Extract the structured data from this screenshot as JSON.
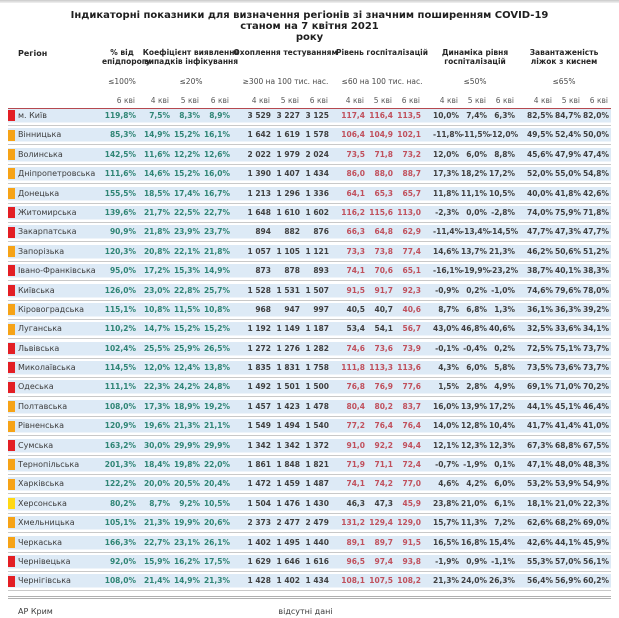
{
  "title": {
    "line1": "Індикаторні показники для визначення регіонів зі значним поширенням COVID-19",
    "line2": "станом на 7 квітня 2021",
    "line3": "року"
  },
  "columns": {
    "region_label": "Регіон",
    "groups": [
      {
        "name": "% від епідпорогу",
        "threshold": "≤100%",
        "subs": [
          "6 кві"
        ]
      },
      {
        "name": "Коефіцієнт виявлення випадків інфікування",
        "threshold": "≤20%",
        "subs": [
          "4 кві",
          "5 кві",
          "6 кві"
        ]
      },
      {
        "name": "Охоплення тестуванням",
        "threshold": "≥300 на 100 тис. нас.",
        "subs": [
          "4 кві",
          "5 кві",
          "6 кві"
        ]
      },
      {
        "name": "Рівень госпіталізацій",
        "threshold": "≤60 на 100 тис. нас.",
        "subs": [
          "4 кві",
          "5 кві",
          "6 кві"
        ]
      },
      {
        "name": "Динаміка рівня госпіталізацій",
        "threshold": "≤50%",
        "subs": [
          "4 кві",
          "5 кві",
          "6 кві"
        ]
      },
      {
        "name": "Завантаженість ліжок з киснем",
        "threshold": "≤65%",
        "subs": [
          "4 кві",
          "5 кві",
          "6 кві"
        ]
      }
    ]
  },
  "status_colors": {
    "red": "#e31e24",
    "orange": "#f6a317",
    "yellow": "#ffd814"
  },
  "value_colors": {
    "green": "#2f8575",
    "red": "#c0505c",
    "dark": "#3f3f3f"
  },
  "rows": [
    {
      "region": "м. Київ",
      "status": "red",
      "epid": "119,8%",
      "coef": [
        "7,5%",
        "8,3%",
        "8,9%"
      ],
      "test": [
        "3 529",
        "3 227",
        "3 125"
      ],
      "hosp": [
        "117,4",
        "116,4",
        "113,5"
      ],
      "dyn": [
        "10,0%",
        "7,4%",
        "6,3%"
      ],
      "load": [
        "82,5%",
        "84,7%",
        "82,0%"
      ]
    },
    {
      "region": "Вінницька",
      "status": "orange",
      "epid": "85,3%",
      "coef": [
        "14,9%",
        "15,2%",
        "16,1%"
      ],
      "test": [
        "1 642",
        "1 619",
        "1 578"
      ],
      "hosp": [
        "106,4",
        "104,9",
        "102,1"
      ],
      "dyn": [
        "-11,8%",
        "-11,5%",
        "-12,0%"
      ],
      "load": [
        "49,5%",
        "52,4%",
        "50,0%"
      ]
    },
    {
      "region": "Волинська",
      "status": "orange",
      "epid": "142,5%",
      "coef": [
        "11,6%",
        "12,2%",
        "12,6%"
      ],
      "test": [
        "2 022",
        "1 979",
        "2 024"
      ],
      "hosp": [
        "73,5",
        "71,8",
        "73,2"
      ],
      "dyn": [
        "12,0%",
        "6,0%",
        "8,8%"
      ],
      "load": [
        "45,6%",
        "47,9%",
        "47,4%"
      ]
    },
    {
      "region": "Дніпропетровська",
      "status": "orange",
      "epid": "111,6%",
      "coef": [
        "14,6%",
        "15,2%",
        "16,0%"
      ],
      "test": [
        "1 390",
        "1 407",
        "1 434"
      ],
      "hosp": [
        "86,0",
        "88,0",
        "88,7"
      ],
      "dyn": [
        "17,3%",
        "18,2%",
        "17,2%"
      ],
      "load": [
        "52,0%",
        "55,0%",
        "54,8%"
      ]
    },
    {
      "region": "Донецька",
      "status": "orange",
      "epid": "155,5%",
      "coef": [
        "18,5%",
        "17,4%",
        "16,7%"
      ],
      "test": [
        "1 213",
        "1 296",
        "1 336"
      ],
      "hosp": [
        "64,1",
        "65,3",
        "65,7"
      ],
      "dyn": [
        "11,8%",
        "11,1%",
        "10,5%"
      ],
      "load": [
        "40,0%",
        "41,8%",
        "42,6%"
      ]
    },
    {
      "region": "Житомирська",
      "status": "red",
      "epid": "139,6%",
      "coef": [
        "21,7%",
        "22,5%",
        "22,7%"
      ],
      "test": [
        "1 648",
        "1 610",
        "1 602"
      ],
      "hosp": [
        "116,2",
        "115,6",
        "113,0"
      ],
      "dyn": [
        "-2,3%",
        "0,0%",
        "-2,8%"
      ],
      "load": [
        "74,0%",
        "75,9%",
        "71,8%"
      ]
    },
    {
      "region": "Закарпатська",
      "status": "red",
      "epid": "90,9%",
      "coef": [
        "21,8%",
        "23,9%",
        "23,7%"
      ],
      "test": [
        "894",
        "882",
        "876"
      ],
      "hosp": [
        "66,3",
        "64,8",
        "62,9"
      ],
      "dyn": [
        "-11,4%",
        "-13,4%",
        "-14,5%"
      ],
      "load": [
        "47,7%",
        "47,3%",
        "47,7%"
      ]
    },
    {
      "region": "Запорізька",
      "status": "orange",
      "epid": "120,3%",
      "coef": [
        "20,8%",
        "22,1%",
        "21,8%"
      ],
      "test": [
        "1 057",
        "1 105",
        "1 121"
      ],
      "hosp": [
        "73,3",
        "73,8",
        "77,4"
      ],
      "dyn": [
        "14,6%",
        "13,7%",
        "21,3%"
      ],
      "load": [
        "46,2%",
        "50,6%",
        "51,2%"
      ]
    },
    {
      "region": "Івано-Франківська",
      "status": "red",
      "epid": "95,0%",
      "coef": [
        "17,2%",
        "15,3%",
        "14,9%"
      ],
      "test": [
        "873",
        "878",
        "893"
      ],
      "hosp": [
        "74,1",
        "70,6",
        "65,1"
      ],
      "dyn": [
        "-16,1%",
        "-19,9%",
        "-23,2%"
      ],
      "load": [
        "38,7%",
        "40,1%",
        "38,3%"
      ]
    },
    {
      "region": "Київська",
      "status": "red",
      "epid": "126,0%",
      "coef": [
        "23,0%",
        "22,8%",
        "25,7%"
      ],
      "test": [
        "1 528",
        "1 531",
        "1 507"
      ],
      "hosp": [
        "91,5",
        "91,7",
        "92,3"
      ],
      "dyn": [
        "-0,9%",
        "0,2%",
        "-1,0%"
      ],
      "load": [
        "74,6%",
        "79,6%",
        "78,0%"
      ]
    },
    {
      "region": "Кіровоградська",
      "status": "orange",
      "epid": "115,1%",
      "coef": [
        "10,8%",
        "11,5%",
        "10,8%"
      ],
      "test": [
        "968",
        "947",
        "997"
      ],
      "hosp": [
        "40,5",
        "40,7",
        "40,6"
      ],
      "hosp_colors": [
        "dark",
        "dark",
        "red"
      ],
      "dyn": [
        "8,7%",
        "6,8%",
        "1,3%"
      ],
      "load": [
        "36,1%",
        "36,3%",
        "39,2%"
      ]
    },
    {
      "region": "Луганська",
      "status": "orange",
      "epid": "110,2%",
      "coef": [
        "14,7%",
        "15,2%",
        "15,2%"
      ],
      "test": [
        "1 192",
        "1 149",
        "1 187"
      ],
      "hosp": [
        "53,4",
        "54,1",
        "56,7"
      ],
      "hosp_colors": [
        "dark",
        "dark",
        "red"
      ],
      "dyn": [
        "43,0%",
        "46,8%",
        "40,6%"
      ],
      "load": [
        "32,5%",
        "33,6%",
        "34,1%"
      ]
    },
    {
      "region": "Львівська",
      "status": "red",
      "epid": "102,4%",
      "coef": [
        "25,5%",
        "25,9%",
        "26,5%"
      ],
      "test": [
        "1 272",
        "1 276",
        "1 282"
      ],
      "hosp": [
        "74,6",
        "73,6",
        "73,9"
      ],
      "dyn": [
        "-0,1%",
        "-0,4%",
        "0,2%"
      ],
      "load": [
        "72,5%",
        "75,1%",
        "73,7%"
      ]
    },
    {
      "region": "Миколаївська",
      "status": "red",
      "epid": "114,5%",
      "coef": [
        "12,0%",
        "12,4%",
        "13,8%"
      ],
      "test": [
        "1 835",
        "1 831",
        "1 758"
      ],
      "hosp": [
        "111,8",
        "113,3",
        "113,6"
      ],
      "dyn": [
        "4,3%",
        "6,0%",
        "5,8%"
      ],
      "load": [
        "73,5%",
        "73,6%",
        "73,7%"
      ]
    },
    {
      "region": "Одеська",
      "status": "red",
      "epid": "111,1%",
      "coef": [
        "22,3%",
        "24,2%",
        "24,8%"
      ],
      "test": [
        "1 492",
        "1 501",
        "1 500"
      ],
      "hosp": [
        "76,8",
        "76,9",
        "77,6"
      ],
      "dyn": [
        "1,5%",
        "2,8%",
        "4,9%"
      ],
      "load": [
        "69,1%",
        "71,0%",
        "70,2%"
      ]
    },
    {
      "region": "Полтавська",
      "status": "orange",
      "epid": "108,0%",
      "coef": [
        "17,3%",
        "18,9%",
        "19,2%"
      ],
      "test": [
        "1 457",
        "1 423",
        "1 478"
      ],
      "hosp": [
        "80,4",
        "80,2",
        "83,7"
      ],
      "dyn": [
        "16,0%",
        "13,9%",
        "17,2%"
      ],
      "load": [
        "44,1%",
        "45,1%",
        "46,4%"
      ]
    },
    {
      "region": "Рівненська",
      "status": "orange",
      "epid": "120,9%",
      "coef": [
        "19,6%",
        "21,3%",
        "21,1%"
      ],
      "test": [
        "1 549",
        "1 494",
        "1 540"
      ],
      "hosp": [
        "77,2",
        "76,4",
        "76,4"
      ],
      "dyn": [
        "14,0%",
        "12,8%",
        "10,4%"
      ],
      "load": [
        "41,7%",
        "41,4%",
        "41,0%"
      ]
    },
    {
      "region": "Сумська",
      "status": "red",
      "epid": "163,2%",
      "coef": [
        "30,0%",
        "29,9%",
        "29,9%"
      ],
      "test": [
        "1 342",
        "1 342",
        "1 372"
      ],
      "hosp": [
        "91,0",
        "92,2",
        "94,4"
      ],
      "dyn": [
        "12,1%",
        "12,3%",
        "12,3%"
      ],
      "load": [
        "67,3%",
        "68,8%",
        "67,5%"
      ]
    },
    {
      "region": "Тернопільська",
      "status": "orange",
      "epid": "201,3%",
      "coef": [
        "18,4%",
        "19,8%",
        "22,0%"
      ],
      "test": [
        "1 861",
        "1 848",
        "1 821"
      ],
      "hosp": [
        "71,9",
        "71,1",
        "72,4"
      ],
      "dyn": [
        "-0,7%",
        "-1,9%",
        "0,1%"
      ],
      "load": [
        "47,1%",
        "48,0%",
        "48,3%"
      ]
    },
    {
      "region": "Харківська",
      "status": "orange",
      "epid": "122,2%",
      "coef": [
        "20,0%",
        "20,5%",
        "20,4%"
      ],
      "test": [
        "1 472",
        "1 459",
        "1 487"
      ],
      "hosp": [
        "74,1",
        "74,2",
        "77,0"
      ],
      "dyn": [
        "4,6%",
        "4,2%",
        "6,0%"
      ],
      "load": [
        "53,2%",
        "53,9%",
        "54,9%"
      ]
    },
    {
      "region": "Херсонська",
      "status": "yellow",
      "epid": "80,2%",
      "coef": [
        "8,7%",
        "9,2%",
        "10,5%"
      ],
      "test": [
        "1 504",
        "1 476",
        "1 430"
      ],
      "hosp": [
        "46,3",
        "47,3",
        "45,9"
      ],
      "hosp_colors": [
        "dark",
        "dark",
        "red"
      ],
      "dyn": [
        "23,8%",
        "21,0%",
        "6,1%"
      ],
      "load": [
        "18,1%",
        "21,0%",
        "22,3%"
      ]
    },
    {
      "region": "Хмельницька",
      "status": "orange",
      "epid": "105,1%",
      "coef": [
        "21,3%",
        "19,9%",
        "20,6%"
      ],
      "test": [
        "2 373",
        "2 477",
        "2 479"
      ],
      "hosp": [
        "131,2",
        "129,4",
        "129,0"
      ],
      "dyn": [
        "15,7%",
        "11,3%",
        "7,2%"
      ],
      "load": [
        "62,6%",
        "68,2%",
        "69,0%"
      ]
    },
    {
      "region": "Черкаська",
      "status": "orange",
      "epid": "166,3%",
      "coef": [
        "22,7%",
        "23,1%",
        "26,1%"
      ],
      "test": [
        "1 402",
        "1 495",
        "1 440"
      ],
      "hosp": [
        "89,1",
        "89,7",
        "91,5"
      ],
      "dyn": [
        "16,5%",
        "16,8%",
        "15,4%"
      ],
      "load": [
        "42,6%",
        "44,1%",
        "45,9%"
      ]
    },
    {
      "region": "Чернівецька",
      "status": "red",
      "epid": "92,0%",
      "coef": [
        "15,9%",
        "16,2%",
        "17,5%"
      ],
      "test": [
        "1 629",
        "1 646",
        "1 616"
      ],
      "hosp": [
        "96,5",
        "97,4",
        "93,8"
      ],
      "dyn": [
        "-1,9%",
        "0,9%",
        "-1,1%"
      ],
      "load": [
        "55,3%",
        "57,0%",
        "56,1%"
      ]
    },
    {
      "region": "Чернігівська",
      "status": "red",
      "epid": "108,0%",
      "coef": [
        "21,4%",
        "14,9%",
        "21,3%"
      ],
      "test": [
        "1 428",
        "1 402",
        "1 434"
      ],
      "hosp": [
        "108,1",
        "107,5",
        "108,2"
      ],
      "dyn": [
        "21,3%",
        "24,0%",
        "26,3%"
      ],
      "load": [
        "56,4%",
        "56,9%",
        "60,2%"
      ]
    }
  ],
  "footer_row": {
    "region": "АР Крим",
    "note": "відсутні дані"
  }
}
